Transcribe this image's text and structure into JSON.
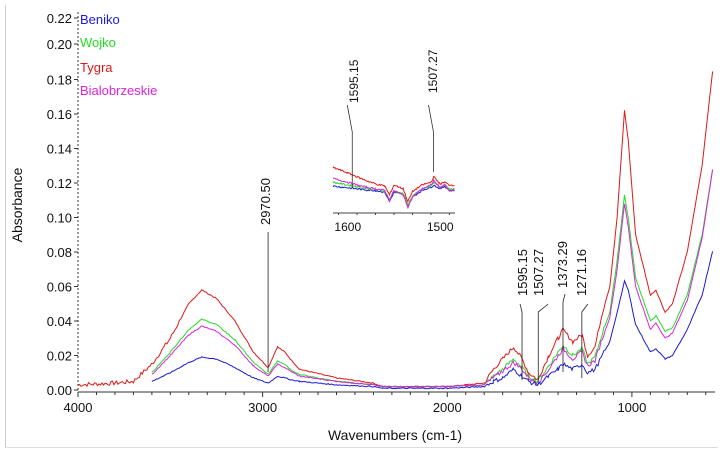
{
  "chart_data": {
    "type": "line",
    "title": "",
    "xlabel": "Wavenumbers (cm-1)",
    "ylabel": "Absorbance",
    "xlim": [
      4000,
      550
    ],
    "ylim": [
      0,
      0.22
    ],
    "x_reversed": true,
    "grid": false,
    "legend_position": "top-left",
    "xticks": [
      4000,
      3000,
      2000,
      1000
    ],
    "xtick_labels": [
      "4000",
      "3000",
      "2000",
      "1000"
    ],
    "yticks": [
      0.0,
      0.02,
      0.04,
      0.06,
      0.08,
      0.1,
      0.12,
      0.14,
      0.16,
      0.18,
      0.2,
      0.22
    ],
    "ytick_labels": [
      "0.00",
      "0.02",
      "0.04",
      "0.06",
      "0.08",
      "0.10",
      "0.12",
      "0.14",
      "0.16",
      "0.18",
      "0.20",
      "0.22"
    ],
    "x": [
      4000,
      3800,
      3700,
      3600,
      3500,
      3400,
      3330,
      3250,
      3150,
      3050,
      2970,
      2920,
      2880,
      2850,
      2800,
      2600,
      2400,
      2350,
      2000,
      1800,
      1750,
      1700,
      1640,
      1595,
      1560,
      1510,
      1450,
      1400,
      1373,
      1320,
      1270,
      1240,
      1200,
      1160,
      1120,
      1080,
      1040,
      1020,
      980,
      900,
      870,
      820,
      780,
      700,
      620,
      560
    ],
    "series": [
      {
        "name": "Beniko",
        "color": "#1a1ad6",
        "values": [
          null,
          null,
          null,
          0.005,
          0.01,
          0.016,
          0.019,
          0.018,
          0.013,
          0.007,
          0.004,
          0.008,
          0.007,
          0.006,
          0.005,
          0.003,
          0.002,
          0.001,
          0.001,
          0.002,
          0.005,
          0.007,
          0.012,
          0.008,
          0.005,
          0.003,
          0.008,
          0.012,
          0.015,
          0.012,
          0.015,
          0.01,
          0.012,
          0.02,
          0.028,
          0.045,
          0.063,
          0.058,
          0.038,
          0.022,
          0.024,
          0.018,
          0.02,
          0.035,
          0.055,
          0.082
        ]
      },
      {
        "name": "Wojko",
        "color": "#22dd22",
        "values": [
          null,
          null,
          null,
          0.01,
          0.022,
          0.035,
          0.041,
          0.038,
          0.029,
          0.016,
          0.009,
          0.017,
          0.015,
          0.012,
          0.009,
          0.005,
          0.003,
          0.002,
          0.002,
          0.003,
          0.008,
          0.012,
          0.018,
          0.013,
          0.008,
          0.005,
          0.014,
          0.022,
          0.026,
          0.02,
          0.024,
          0.015,
          0.019,
          0.033,
          0.045,
          0.075,
          0.113,
          0.1,
          0.065,
          0.04,
          0.043,
          0.034,
          0.036,
          0.055,
          0.09,
          0.13
        ]
      },
      {
        "name": "Tygra",
        "color": "#e01818",
        "values": [
          0.003,
          0.004,
          0.005,
          0.015,
          0.03,
          0.05,
          0.058,
          0.053,
          0.04,
          0.022,
          0.013,
          0.025,
          0.022,
          0.018,
          0.012,
          0.007,
          0.004,
          0.002,
          0.002,
          0.004,
          0.012,
          0.018,
          0.025,
          0.018,
          0.01,
          0.006,
          0.02,
          0.03,
          0.035,
          0.028,
          0.032,
          0.02,
          0.025,
          0.045,
          0.06,
          0.1,
          0.162,
          0.145,
          0.09,
          0.055,
          0.058,
          0.045,
          0.05,
          0.08,
          0.13,
          0.188
        ]
      },
      {
        "name": "Bialobrzeskie",
        "color": "#dd22dd",
        "values": [
          null,
          null,
          null,
          0.009,
          0.02,
          0.032,
          0.037,
          0.034,
          0.026,
          0.014,
          0.008,
          0.015,
          0.013,
          0.011,
          0.008,
          0.005,
          0.003,
          0.002,
          0.002,
          0.003,
          0.007,
          0.011,
          0.016,
          0.012,
          0.007,
          0.004,
          0.012,
          0.02,
          0.024,
          0.018,
          0.022,
          0.014,
          0.017,
          0.03,
          0.042,
          0.07,
          0.108,
          0.095,
          0.06,
          0.035,
          0.039,
          0.03,
          0.033,
          0.052,
          0.088,
          0.13
        ]
      }
    ],
    "annotations": [
      {
        "label": "2970.50",
        "x": 2970.5
      },
      {
        "label": "1595.15",
        "x": 1595.15
      },
      {
        "label": "1507.27",
        "x": 1507.27
      },
      {
        "label": "1373.29",
        "x": 1373.29
      },
      {
        "label": "1271.16",
        "x": 1271.16
      }
    ],
    "inset": {
      "xlim": [
        1616,
        1484
      ],
      "xticks": [
        1600,
        1500
      ],
      "xtick_labels": [
        "1600",
        "1500"
      ],
      "ylim": [
        0,
        1
      ],
      "x": [
        1616,
        1600,
        1590,
        1580,
        1570,
        1560,
        1555,
        1550,
        1540,
        1535,
        1530,
        1520,
        1510,
        1507,
        1500,
        1495,
        1490,
        1484
      ],
      "series": [
        {
          "name": "Beniko",
          "values": [
            0.38,
            0.35,
            0.33,
            0.31,
            0.3,
            0.27,
            0.1,
            0.27,
            0.22,
            0.02,
            0.18,
            0.3,
            0.36,
            0.4,
            0.33,
            0.38,
            0.3,
            0.3
          ]
        },
        {
          "name": "Wojko",
          "values": [
            0.45,
            0.4,
            0.37,
            0.34,
            0.32,
            0.29,
            0.14,
            0.29,
            0.24,
            0.04,
            0.2,
            0.32,
            0.38,
            0.45,
            0.36,
            0.4,
            0.32,
            0.32
          ]
        },
        {
          "name": "Tygra",
          "values": [
            0.72,
            0.62,
            0.55,
            0.48,
            0.42,
            0.38,
            0.22,
            0.4,
            0.33,
            0.1,
            0.28,
            0.4,
            0.45,
            0.55,
            0.42,
            0.45,
            0.4,
            0.4
          ]
        },
        {
          "name": "Bialobrzeskie",
          "values": [
            0.52,
            0.45,
            0.4,
            0.36,
            0.33,
            0.3,
            0.12,
            0.3,
            0.22,
            0.0,
            0.18,
            0.33,
            0.4,
            0.48,
            0.35,
            0.42,
            0.28,
            0.32
          ]
        }
      ],
      "annotations": [
        {
          "label": "1595.15",
          "x": 1595.15
        },
        {
          "label": "1507.27",
          "x": 1507.27
        }
      ]
    }
  }
}
